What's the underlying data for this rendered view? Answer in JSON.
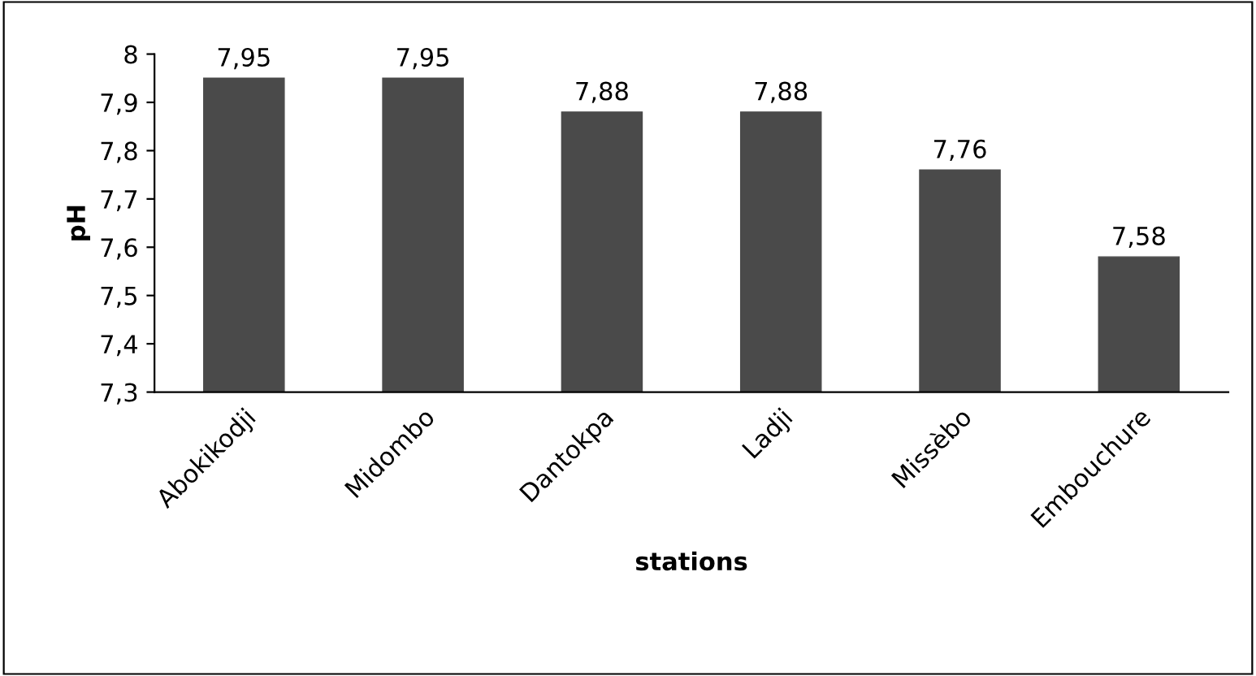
{
  "chart_data": {
    "type": "bar",
    "xlabel": "stations",
    "ylabel": "pH",
    "categories": [
      "Abokikodji",
      "Midombo",
      "Dantokpa",
      "Ladji",
      "Missèbo",
      "Embouchure"
    ],
    "values": [
      7.95,
      7.95,
      7.88,
      7.88,
      7.76,
      7.58
    ],
    "value_labels": [
      "7,95",
      "7,95",
      "7,88",
      "7,88",
      "7,76",
      "7,58"
    ],
    "color": "#4a4a4a",
    "ylim": [
      7.3,
      8
    ],
    "yticks": [
      {
        "value": 7.3,
        "label": "7,3"
      },
      {
        "value": 7.4,
        "label": "7,4"
      },
      {
        "value": 7.5,
        "label": "7,5"
      },
      {
        "value": 7.6,
        "label": "7,6"
      },
      {
        "value": 7.7,
        "label": "7,7"
      },
      {
        "value": 7.8,
        "label": "7,8"
      },
      {
        "value": 7.9,
        "label": "7,9"
      },
      {
        "value": 8,
        "label": "8"
      }
    ],
    "grid": false,
    "legend": false
  }
}
